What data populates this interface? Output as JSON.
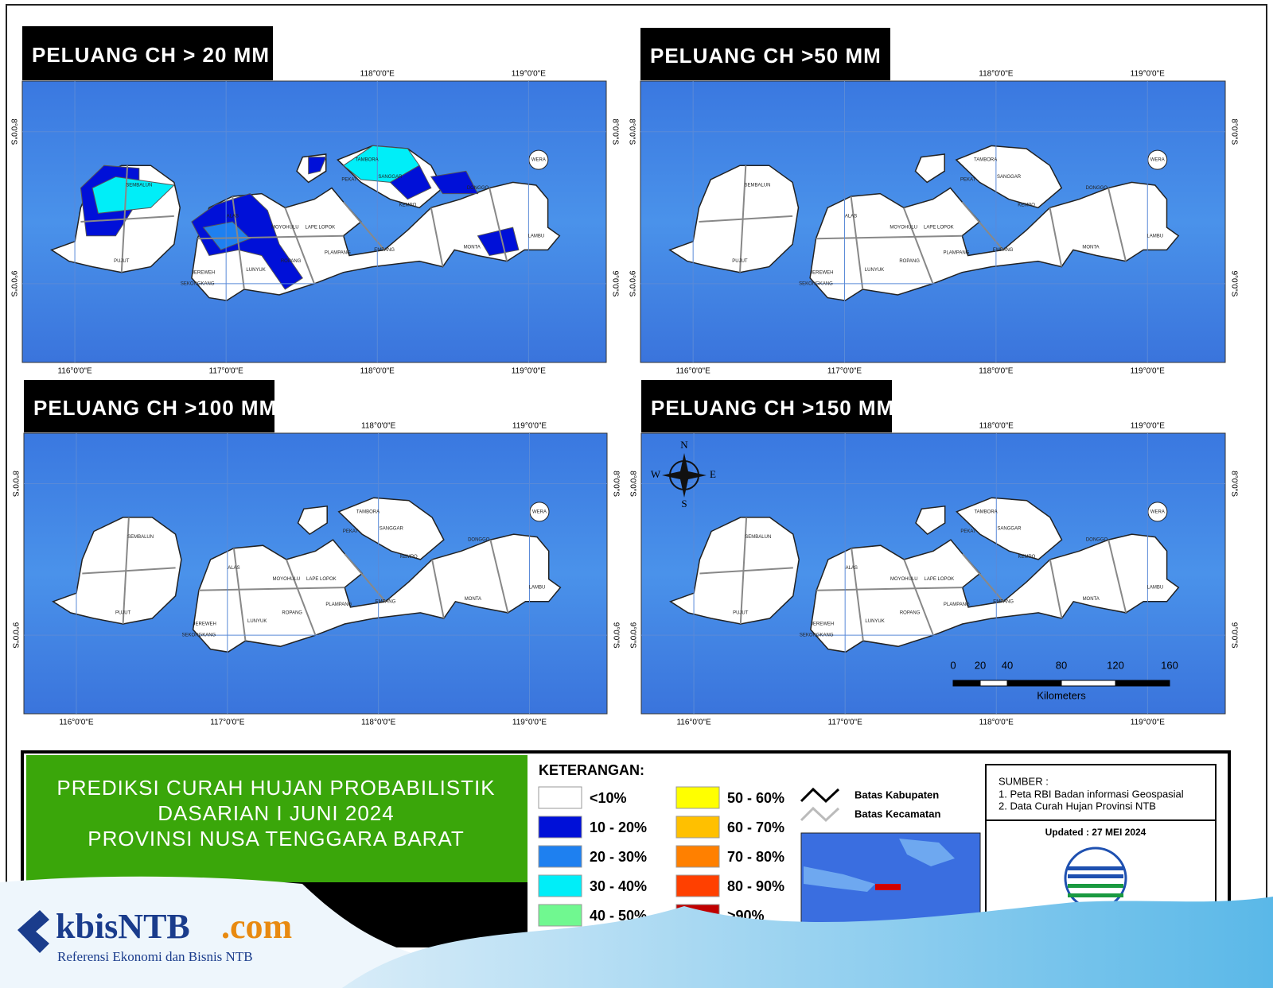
{
  "panels": [
    {
      "title": "PELUANG CH > 20 MM"
    },
    {
      "title": "PELUANG CH >50 MM"
    },
    {
      "title": "PELUANG CH >100 MM"
    },
    {
      "title": "PELUANG CH >150 MM"
    }
  ],
  "lon_labels": [
    "116°0'0\"E",
    "117°0'0\"E",
    "118°0'0\"E",
    "119°0'0\"E"
  ],
  "lat_labels": [
    "8°0'0\"S",
    "9°0'0\"S"
  ],
  "place_labels": [
    "TAMBORA",
    "SANGGAR",
    "PEKAT",
    "KEMPO",
    "LUNYUK",
    "ROPANG",
    "PLAMPANG",
    "EMPANG",
    "JEREWEH",
    "SEKONGKANG",
    "WERA",
    "MONTA",
    "LAMBU",
    "DONGGO",
    "ALAS",
    "MOYOHULU",
    "LAPE LOPOK",
    "SEMBALUN",
    "PUJUT"
  ],
  "compass": {
    "n": "N",
    "s": "S",
    "e": "E",
    "w": "W"
  },
  "scale_bar": {
    "ticks": [
      "0",
      "20",
      "40",
      "80",
      "120",
      "160"
    ],
    "unit": "Kilometers"
  },
  "info_box": {
    "lines": [
      "PREDIKSI CURAH HUJAN PROBABILISTIK",
      "DASARIAN  I JUNI 2024",
      "PROVINSI NUSA TENGGARA BARAT"
    ]
  },
  "legend": {
    "title": "KETERANGAN:",
    "items": [
      {
        "label": "<10%",
        "color": "#ffffff"
      },
      {
        "label": "10 - 20%",
        "color": "#0010d8"
      },
      {
        "label": "20 - 30%",
        "color": "#1e80f0"
      },
      {
        "label": "30 - 40%",
        "color": "#00eef8"
      },
      {
        "label": "40 - 50%",
        "color": "#70f890"
      },
      {
        "label": "50 - 60%",
        "color": "#ffff00"
      },
      {
        "label": "60 - 70%",
        "color": "#ffc000"
      },
      {
        "label": "70 - 80%",
        "color": "#ff8000"
      },
      {
        "label": "80 - 90%",
        "color": "#ff4000"
      },
      {
        "label": ">90%",
        "color": "#c00000"
      }
    ],
    "boundaries": [
      "Batas Kabupaten",
      "Batas Kecamatan"
    ]
  },
  "source": {
    "title": "SUMBER :",
    "items": [
      "1. Peta RBI Badan informasi Geospasial",
      "2. Data Curah Hujan Provinsi NTB"
    ],
    "updated": "Updated : 27 MEI 2024",
    "agency": "BMKG"
  },
  "watermark": {
    "brand": "kbisNTB",
    "suffix": ".com",
    "tagline": "Referensi Ekonomi dan Bisnis NTB"
  }
}
